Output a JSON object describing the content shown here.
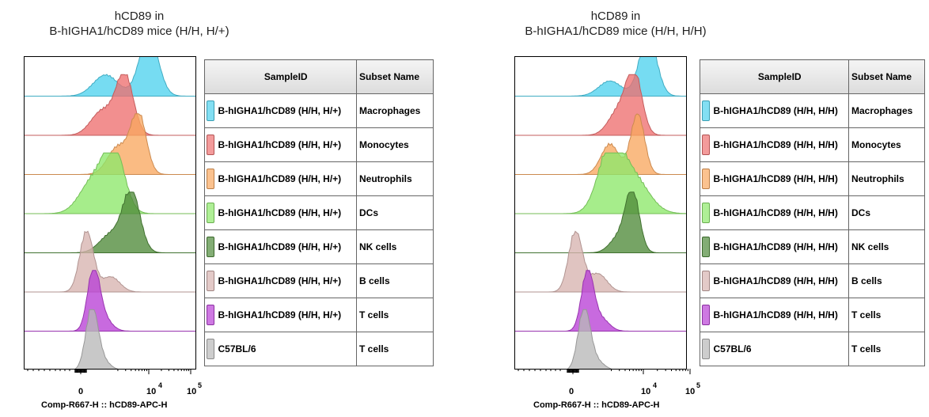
{
  "chart_data": [
    {
      "type": "histogram",
      "title": "hCD89 in\nB-hIGHA1/hCD89 mice (H/H, H/+)",
      "title_lines": [
        "hCD89 in",
        "B-hIGHA1/hCD89 mice (H/H, H/+)"
      ],
      "xlabel": "Comp-R667-H :: hCD89-APC-H",
      "x_scale": "biexponential",
      "x_ticks": [
        {
          "base": "0",
          "exp": ""
        },
        {
          "base": "10",
          "exp": "4"
        },
        {
          "base": "10",
          "exp": "5"
        }
      ],
      "legend_headers": {
        "sample": "SampleID",
        "subset": "Subset Name"
      },
      "series": [
        {
          "sample": "B-hIGHA1/hCD89 (H/H, H/+)",
          "subset": "Macrophages",
          "color": "#4fd2ee",
          "peak": 0.72,
          "width": 0.055,
          "shoulder": 0.47,
          "shoulder_h": 0.35
        },
        {
          "sample": "B-hIGHA1/hCD89 (H/H, H/+)",
          "subset": "Monocytes",
          "color": "#ee7070",
          "peak": 0.58,
          "width": 0.05,
          "shoulder": 0.45,
          "shoulder_h": 0.4
        },
        {
          "sample": "B-hIGHA1/hCD89 (H/H, H/+)",
          "subset": "Neutrophils",
          "color": "#f9a860",
          "peak": 0.66,
          "width": 0.045,
          "shoulder": 0.54,
          "shoulder_h": 0.45
        },
        {
          "sample": "B-hIGHA1/hCD89 (H/H, H/+)",
          "subset": "DCs",
          "color": "#8de86a",
          "peak": 0.52,
          "width": 0.06,
          "shoulder": 0.4,
          "shoulder_h": 0.55
        },
        {
          "sample": "B-hIGHA1/hCD89 (H/H, H/+)",
          "subset": "NK cells",
          "color": "#4f8a3a",
          "peak": 0.62,
          "width": 0.05,
          "shoulder": 0.5,
          "shoulder_h": 0.3
        },
        {
          "sample": "B-hIGHA1/hCD89 (H/H, H/+)",
          "subset": "B cells",
          "color": "#d7b3b0",
          "peak": 0.36,
          "width": 0.04,
          "shoulder": 0.5,
          "shoulder_h": 0.25
        },
        {
          "sample": "B-hIGHA1/hCD89 (H/H, H/+)",
          "subset": "T cells",
          "color": "#b940d6",
          "peak": 0.4,
          "width": 0.035,
          "shoulder": 0.46,
          "shoulder_h": 0.2
        },
        {
          "sample": "C57BL/6",
          "subset": "T cells",
          "color": "#b8b8b8",
          "peak": 0.39,
          "width": 0.035,
          "shoulder": 0.45,
          "shoulder_h": 0.15
        }
      ]
    },
    {
      "type": "histogram",
      "title": "hCD89 in\nB-hIGHA1/hCD89 mice (H/H, H/H)",
      "title_lines": [
        "hCD89 in",
        "B-hIGHA1/hCD89 mice (H/H, H/H)"
      ],
      "xlabel": "Comp-R667-H :: hCD89-APC-H",
      "x_scale": "biexponential",
      "x_ticks": [
        {
          "base": "0",
          "exp": ""
        },
        {
          "base": "10",
          "exp": "4"
        },
        {
          "base": "10",
          "exp": "5"
        }
      ],
      "legend_headers": {
        "sample": "SampleID",
        "subset": "Subset Name"
      },
      "series": [
        {
          "sample": "B-hIGHA1/hCD89 (H/H, H/H)",
          "subset": "Macrophages",
          "color": "#4fd2ee",
          "peak": 0.77,
          "width": 0.05,
          "shoulder": 0.55,
          "shoulder_h": 0.25
        },
        {
          "sample": "B-hIGHA1/hCD89 (H/H, H/H)",
          "subset": "Monocytes",
          "color": "#ee7070",
          "peak": 0.69,
          "width": 0.045,
          "shoulder": 0.6,
          "shoulder_h": 0.4
        },
        {
          "sample": "B-hIGHA1/hCD89 (H/H, H/H)",
          "subset": "Neutrophils",
          "color": "#f9a860",
          "peak": 0.71,
          "width": 0.04,
          "shoulder": 0.55,
          "shoulder_h": 0.5
        },
        {
          "sample": "B-hIGHA1/hCD89 (H/H, H/H)",
          "subset": "DCs",
          "color": "#8de86a",
          "peak": 0.55,
          "width": 0.07,
          "shoulder": 0.68,
          "shoulder_h": 0.6
        },
        {
          "sample": "B-hIGHA1/hCD89 (H/H, H/H)",
          "subset": "NK cells",
          "color": "#4f8a3a",
          "peak": 0.68,
          "width": 0.04,
          "shoulder": 0.6,
          "shoulder_h": 0.25
        },
        {
          "sample": "B-hIGHA1/hCD89 (H/H, H/H)",
          "subset": "B cells",
          "color": "#d7b3b0",
          "peak": 0.35,
          "width": 0.04,
          "shoulder": 0.48,
          "shoulder_h": 0.3
        },
        {
          "sample": "B-hIGHA1/hCD89 (H/H, H/H)",
          "subset": "T cells",
          "color": "#b940d6",
          "peak": 0.42,
          "width": 0.035,
          "shoulder": 0.5,
          "shoulder_h": 0.2
        },
        {
          "sample": "C57BL/6",
          "subset": "T cells",
          "color": "#b8b8b8",
          "peak": 0.4,
          "width": 0.035,
          "shoulder": 0.47,
          "shoulder_h": 0.15
        }
      ]
    }
  ]
}
